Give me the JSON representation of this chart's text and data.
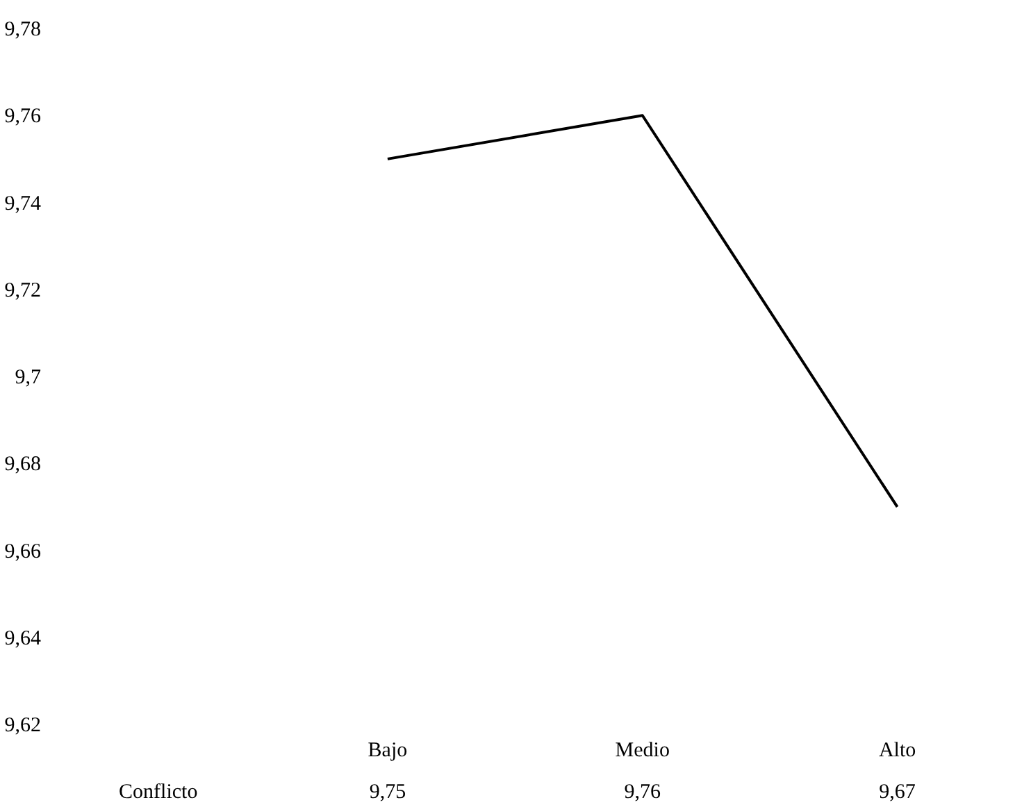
{
  "chart_data": {
    "type": "line",
    "categories": [
      "Bajo",
      "Medio",
      "Alto"
    ],
    "series": [
      {
        "name": "Conflicto",
        "color": "#000000",
        "values": [
          9.75,
          9.76,
          9.67
        ],
        "value_labels": [
          "9,75",
          "9,76",
          "9,67"
        ]
      }
    ],
    "ylim": [
      9.62,
      9.78
    ],
    "yticks": [
      {
        "value": 9.62,
        "label": "9,62"
      },
      {
        "value": 9.64,
        "label": "9,64"
      },
      {
        "value": 9.66,
        "label": "9,66"
      },
      {
        "value": 9.68,
        "label": "9,68"
      },
      {
        "value": 9.7,
        "label": "9,7"
      },
      {
        "value": 9.72,
        "label": "9,72"
      },
      {
        "value": 9.74,
        "label": "9,74"
      },
      {
        "value": 9.76,
        "label": "9,76"
      },
      {
        "value": 9.78,
        "label": "9,78"
      }
    ],
    "grid": false,
    "marker": "none",
    "line_style": "solid"
  }
}
